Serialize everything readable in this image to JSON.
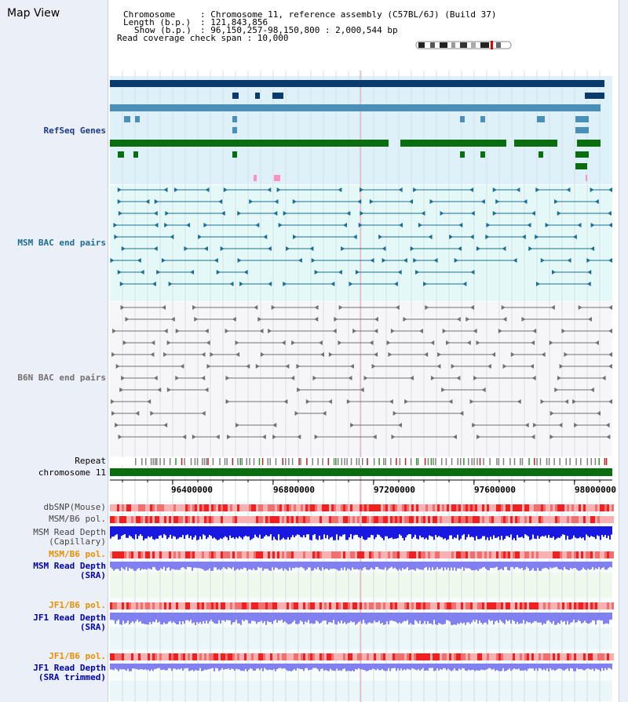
{
  "title": "Map View",
  "header": {
    "chromosome_key": "Chromosome",
    "chromosome_val": ": Chromosome 11, reference assembly (C57BL/6J) (Build 37)",
    "length_key": "Length (b.p.)",
    "length_val": ": 121,843,856",
    "show_key": "Show (b.p.)",
    "show_val": ": 96,150,257-98,150,800 : 2,000,544 bp",
    "coverage": "Read coverage check span : 10,000"
  },
  "tracks": {
    "refseq": "RefSeq Genes",
    "msm_bac": "MSM BAC end pairs",
    "b6n_bac": "B6N BAC end pairs",
    "repeat": "Repeat",
    "chromosome": "chromosome 11",
    "dbsnp": "dbSNP(Mouse)",
    "msm_pol": "MSM/B6 pol.",
    "msm_depth_cap_1": "MSM Read Depth",
    "msm_depth_cap_2": "(Capillary)",
    "msm_pol_2": "MSM/B6 pol.",
    "msm_depth_sra_1": "MSM Read Depth",
    "msm_depth_sra_2": "(SRA)",
    "jf1_pol_1": "JF1/B6 pol.",
    "jf1_depth_sra_1": "JF1 Read Depth",
    "jf1_depth_sra_2": "(SRA)",
    "jf1_pol_2": "JF1/B6 pol.",
    "jf1_depth_trim_1": "JF1 Read Depth",
    "jf1_depth_trim_2": "(SRA trimmed)"
  },
  "axis": {
    "ticks": [
      "96400000",
      "96800000",
      "97200000",
      "97600000",
      "98000000"
    ],
    "tick_values": [
      96400000,
      96800000,
      97200000,
      97600000,
      98000000
    ],
    "range": [
      96150257,
      98150800
    ]
  },
  "colors": {
    "refseq_dark": "#0b3a6e",
    "refseq_mid": "#4a8fb8",
    "refseq_green": "#0a6e10",
    "msm_bac": "#1a6e94",
    "b6n_bac": "#707070",
    "chromosome": "#0a6e10",
    "snp": "#f07070",
    "depth_msm_cap": "#1818e0",
    "depth_sra": "#8080f0",
    "pol_label": "#e89000",
    "depth_label": "#0000b0",
    "track_label": "#1a3a8c"
  }
}
